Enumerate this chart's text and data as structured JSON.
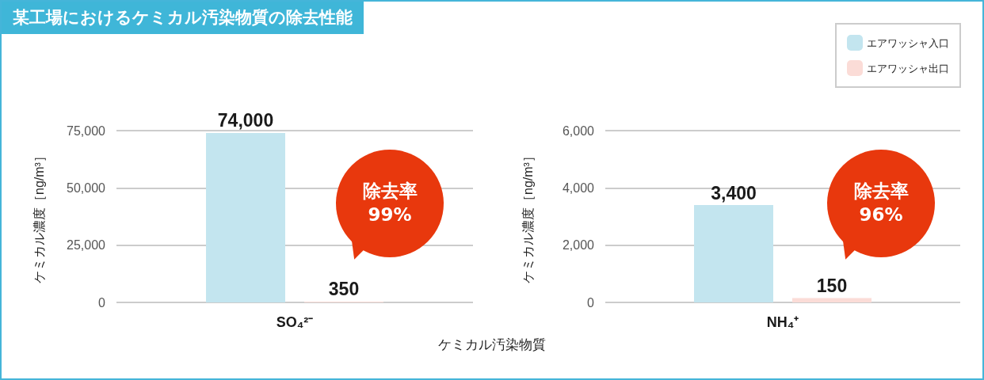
{
  "chart_data": [
    {
      "type": "bar",
      "title": "某工場におけるケミカル汚染物質の除去性能",
      "xlabel": "ケミカル汚染物質",
      "ylabel": "ケミカル濃度［ng/m³］",
      "categories": [
        "SO₄²⁻"
      ],
      "series": [
        {
          "color": "#c3e5ef",
          "values": [
            74000
          ],
          "value_labels": [
            "74,000"
          ]
        },
        {
          "color": "#fbdcd7",
          "values": [
            350
          ],
          "value_labels": [
            "350"
          ]
        }
      ],
      "ylim": [
        0,
        75000
      ],
      "yticks": [
        {
          "value": 0,
          "label": "0"
        },
        {
          "value": 25000,
          "label": "25,000"
        },
        {
          "value": 50000,
          "label": "50,000"
        },
        {
          "value": 75000,
          "label": "75,000"
        }
      ],
      "grid": "y",
      "annotations": [
        "除去率 99%"
      ]
    },
    {
      "type": "bar",
      "ylabel": "ケミカル濃度［ng/m³］",
      "categories": [
        "NH₄⁺"
      ],
      "series": [
        {
          "name": "エアワッシャ入口",
          "color": "#c3e5ef",
          "values": [
            3400
          ],
          "value_labels": [
            "3,400"
          ]
        },
        {
          "name": "エアワッシャ出口",
          "color": "#fbdcd7",
          "values": [
            150
          ],
          "value_labels": [
            "150"
          ]
        }
      ],
      "ylim": [
        0,
        6000
      ],
      "yticks": [
        {
          "value": 0,
          "label": "0"
        },
        {
          "value": 2000,
          "label": "2,000"
        },
        {
          "value": 4000,
          "label": "4,000"
        },
        {
          "value": 6000,
          "label": "6,000"
        }
      ],
      "grid": "y",
      "legend": "top right",
      "annotations": [
        "除去率 96%"
      ]
    }
  ]
}
